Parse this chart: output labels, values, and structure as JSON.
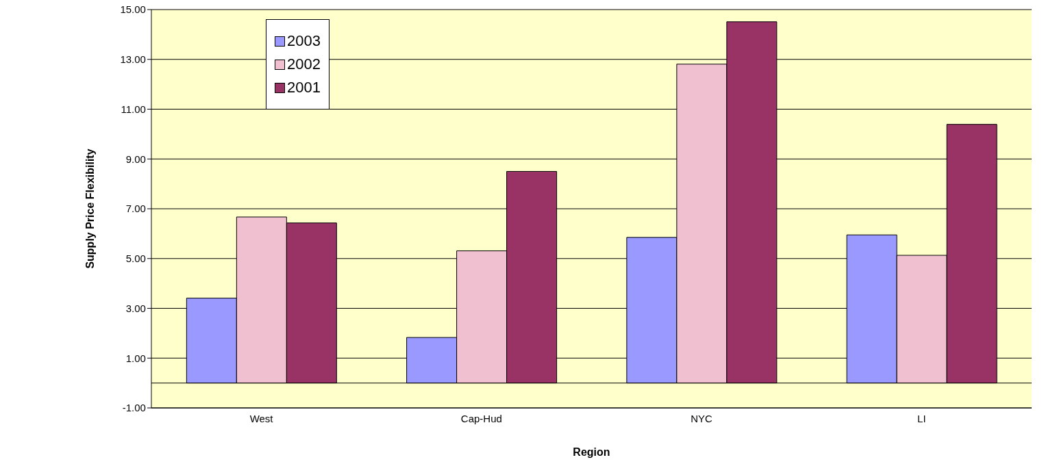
{
  "chart_data": {
    "type": "bar",
    "xlabel": "Region",
    "ylabel": "Supply Price Flexibility",
    "categories": [
      "West",
      "Cap-Hud",
      "NYC",
      "LI"
    ],
    "series": [
      {
        "name": "2003",
        "color": "#9999ff",
        "values": [
          3.41,
          1.83,
          5.85,
          5.95
        ]
      },
      {
        "name": "2002",
        "color": "#f0c0d0",
        "values": [
          6.67,
          5.31,
          12.81,
          5.13
        ]
      },
      {
        "name": "2001",
        "color": "#993366",
        "values": [
          6.43,
          8.5,
          14.51,
          10.39
        ]
      }
    ],
    "ylim": [
      -1,
      15
    ],
    "yticks": [
      {
        "value": -1,
        "label": "-1.00"
      },
      {
        "value": 1,
        "label": "1.00"
      },
      {
        "value": 3,
        "label": "3.00"
      },
      {
        "value": 5,
        "label": "5.00"
      },
      {
        "value": 7,
        "label": "7.00"
      },
      {
        "value": 9,
        "label": "9.00"
      },
      {
        "value": 11,
        "label": "11.00"
      },
      {
        "value": 13,
        "label": "13.00"
      },
      {
        "value": 15,
        "label": "15.00"
      }
    ],
    "grid": "y",
    "legend": "top left",
    "ref_lines": [
      {
        "axis": "y",
        "value": 0,
        "label": null
      }
    ]
  }
}
